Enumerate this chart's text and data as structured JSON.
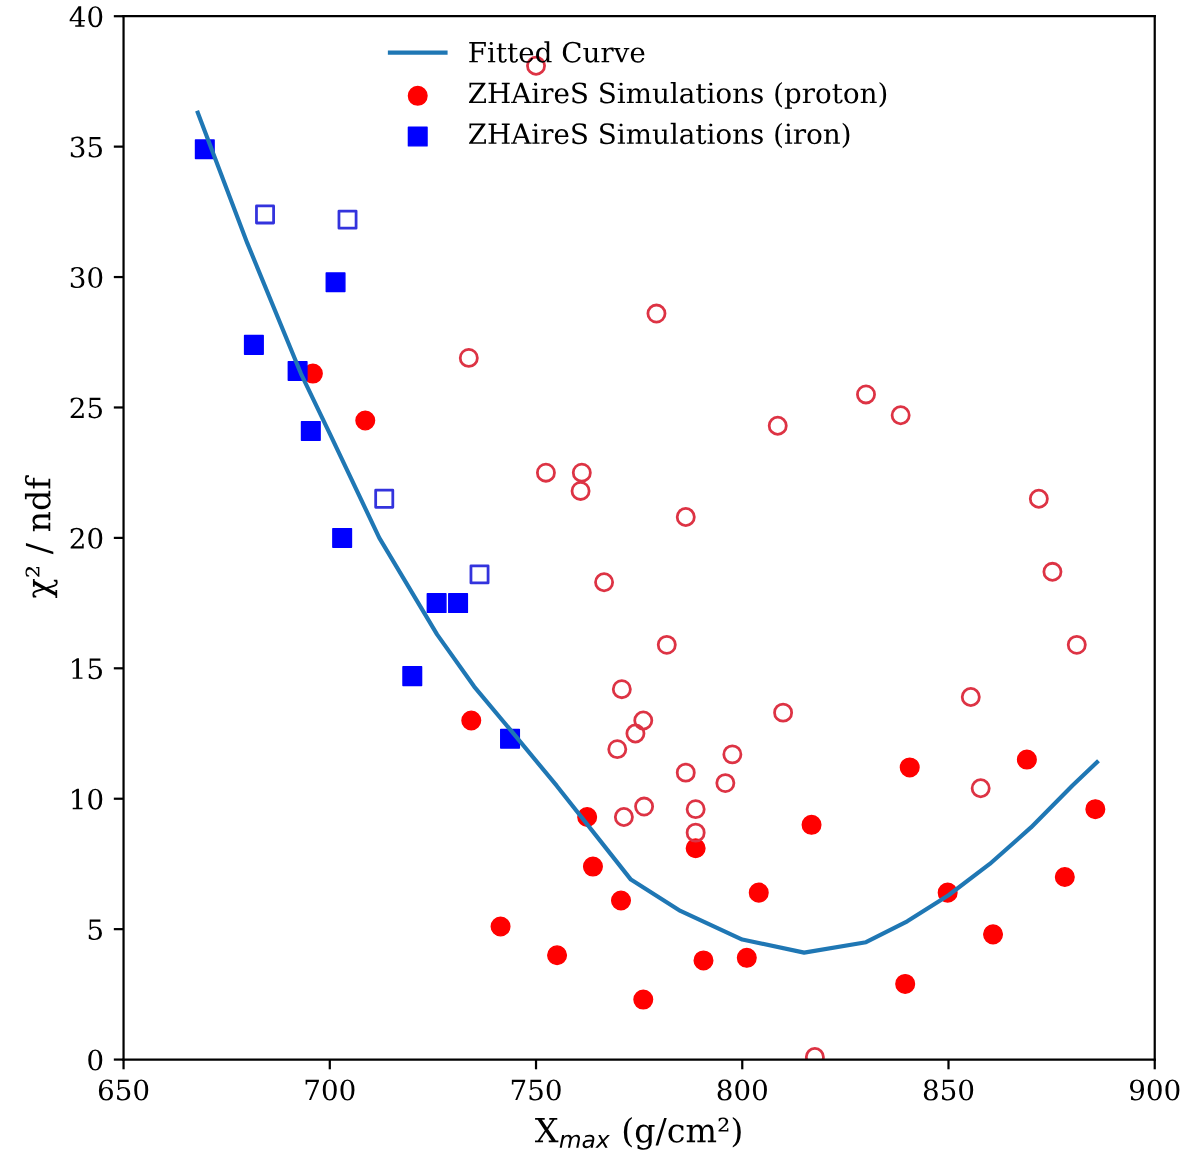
{
  "chart_data": {
    "type": "scatter",
    "xlabel": "X$_{max}$ (g/cm²)",
    "ylabel": "χ² / ndf",
    "xlim": [
      650,
      900
    ],
    "xticks": [
      650,
      700,
      750,
      800,
      850,
      900
    ],
    "ylim": [
      0,
      40
    ],
    "yticks": [
      0,
      5,
      10,
      15,
      20,
      25,
      30,
      35,
      40
    ],
    "grid": false,
    "legend": "top",
    "series": [
      {
        "name": "Fitted Curve",
        "type": "line",
        "color": "#1f77b4",
        "marker": "none",
        "line_style": "solid",
        "x": [
          668,
          680,
          693,
          700,
          712,
          726,
          735,
          744,
          755,
          765,
          773,
          785,
          800,
          815,
          830,
          840,
          850,
          860,
          870,
          880,
          886
        ],
        "values": [
          36.3,
          31.3,
          26.3,
          24.0,
          20.0,
          16.3,
          14.3,
          12.6,
          10.5,
          8.5,
          6.9,
          5.7,
          4.6,
          4.1,
          4.5,
          5.3,
          6.3,
          7.5,
          8.9,
          10.5,
          11.4
        ]
      },
      {
        "name": "ZHAireS Simulations (proton)",
        "color": "#ff0000",
        "marker": "circle",
        "x": [
          695.9,
          708.6,
          734.3,
          741.4,
          755.1,
          762.4,
          763.8,
          770.6,
          776.0,
          788.7,
          790.6,
          801.1,
          804.0,
          816.8,
          840.6,
          839.5,
          849.8,
          860.8,
          869.0,
          878.2,
          885.6
        ],
        "values": [
          26.3,
          24.5,
          13.0,
          5.1,
          4.0,
          9.3,
          7.4,
          6.1,
          2.3,
          8.1,
          3.8,
          3.9,
          6.4,
          9.0,
          11.2,
          2.9,
          6.4,
          4.8,
          11.5,
          7.0,
          9.6
        ]
      },
      {
        "name": "ZHAireS Simulations (iron)",
        "color": "#0000ff",
        "marker": "square",
        "x": [
          669.7,
          681.6,
          692.2,
          695.4,
          701.4,
          703.0,
          720.0,
          725.9,
          731.1,
          743.7
        ],
        "values": [
          34.9,
          27.4,
          26.4,
          24.1,
          29.8,
          20.0,
          14.7,
          17.5,
          17.5,
          12.3
        ]
      },
      {
        "color": "#dd3344",
        "marker": "circle",
        "x": [
          750.0,
          733.7,
          752.4,
          761.1,
          760.8,
          779.2,
          830.0,
          838.4,
          808.6,
          786.3,
          871.9,
          766.5,
          875.2,
          781.7,
          881.1,
          770.8,
          855.4,
          776.0,
          774.1,
          769.7,
          809.9,
          797.6,
          786.3,
          795.9,
          857.8,
          776.2,
          771.3,
          788.7,
          788.7,
          817.6
        ],
        "values": [
          38.1,
          26.9,
          22.5,
          22.5,
          21.8,
          28.6,
          25.5,
          24.7,
          24.3,
          20.8,
          21.5,
          18.3,
          18.7,
          15.9,
          15.9,
          14.2,
          13.9,
          13.0,
          12.5,
          11.9,
          13.3,
          11.7,
          11.0,
          10.6,
          10.4,
          9.7,
          9.3,
          9.6,
          8.7,
          0.1
        ]
      },
      {
        "color": "#3333dd",
        "marker": "square",
        "x": [
          684.3,
          704.3,
          713.2,
          736.3
        ],
        "values": [
          32.4,
          32.2,
          21.5,
          18.6
        ]
      }
    ]
  }
}
